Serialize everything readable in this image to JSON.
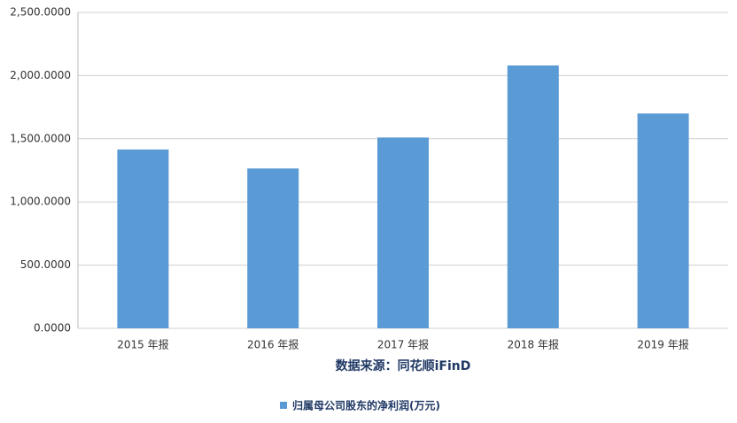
{
  "chart_data": {
    "type": "bar",
    "x_label": "数据来源：同花顺iFinD",
    "categories": [
      "2015 年报",
      "2016 年报",
      "2017 年报",
      "2018 年报",
      "2019 年报"
    ],
    "series": [
      {
        "name": "归属母公司股东的净利润(万元)",
        "color": "#5b9bd5",
        "values": [
          1415,
          1265,
          1510,
          2080,
          1700
        ]
      }
    ],
    "ylim": [
      0,
      2500
    ],
    "yticks": [
      {
        "value": 0,
        "label": "0.0000"
      },
      {
        "value": 500,
        "label": "500.0000"
      },
      {
        "value": 1000,
        "label": "1,000.0000"
      },
      {
        "value": 1500,
        "label": "1,500.0000"
      },
      {
        "value": 2000,
        "label": "2,000.0000"
      },
      {
        "value": 2500,
        "label": "2,500.0000"
      }
    ],
    "grid": true,
    "legend": "bottom"
  }
}
